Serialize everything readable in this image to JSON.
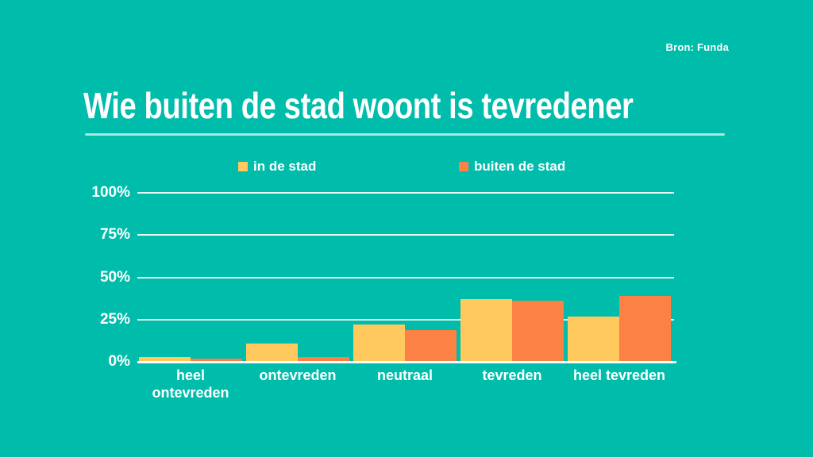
{
  "source": "Bron: Funda",
  "title": "Wie buiten de stad woont is tevredener",
  "colors": {
    "background": "#00BCAB",
    "in_de_stad": "#FFC95E",
    "buiten_de_stad": "#FB8244",
    "text": "#FFFFFF",
    "gridline": "#FFFFFF"
  },
  "chart_data": {
    "type": "bar",
    "title": "Wie buiten de stad woont is tevredener",
    "source": "Bron: Funda",
    "categories": [
      "heel ontevreden",
      "ontevreden",
      "neutraal",
      "tevreden",
      "heel tevreden"
    ],
    "series": [
      {
        "name": "in de stad",
        "color": "#FFC95E",
        "values": [
          3,
          11,
          22,
          37,
          27
        ]
      },
      {
        "name": "buiten de stad",
        "color": "#FB8244",
        "values": [
          2,
          3,
          19,
          36,
          39
        ]
      }
    ],
    "xlabel": "",
    "ylabel": "",
    "yticks": [
      0,
      25,
      50,
      75,
      100
    ],
    "ytick_labels": [
      "0%",
      "25%",
      "50%",
      "75%",
      "100%"
    ],
    "ylim": [
      0,
      100
    ],
    "grid": true,
    "legend_position": "top"
  }
}
